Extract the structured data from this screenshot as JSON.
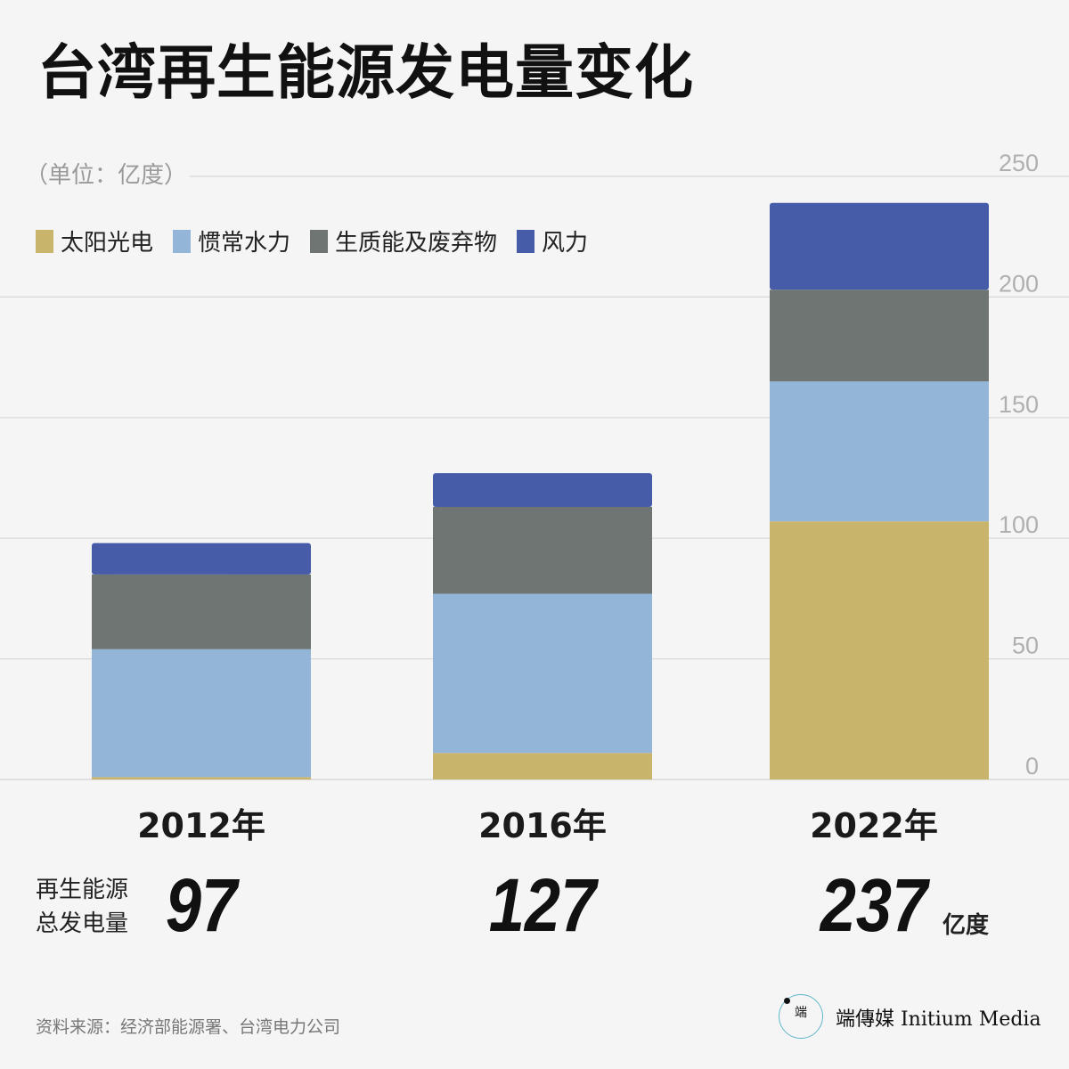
{
  "title": "台湾再生能源发电量变化",
  "unit_label": "（单位：亿度）",
  "source": "资料来源：经济部能源署、台湾电力公司",
  "brand": {
    "name": "端傳媒 Initium Media",
    "logo_glyph": "端"
  },
  "totals_label_line1": "再生能源",
  "totals_label_line2": "总发电量",
  "totals_unit": "亿度",
  "totals": [
    "97",
    "127",
    "237"
  ],
  "chart_data": {
    "type": "bar",
    "stacked": true,
    "categories": [
      "2012年",
      "2016年",
      "2022年"
    ],
    "series": [
      {
        "name": "太阳光电",
        "color": "#c9b46c",
        "values": [
          1,
          11,
          107
        ]
      },
      {
        "name": "惯常水力",
        "color": "#93b5d8",
        "values": [
          53,
          66,
          58
        ]
      },
      {
        "name": "生质能及废弃物",
        "color": "#6e7572",
        "values": [
          31,
          36,
          38
        ]
      },
      {
        "name": "风力",
        "color": "#475ca8",
        "values": [
          13,
          14,
          36
        ]
      }
    ],
    "y_ticks": [
      "0",
      "50",
      "100",
      "150",
      "200",
      "250"
    ],
    "ylim": [
      0,
      250
    ],
    "grid": true,
    "legend": "top-left",
    "y_axis_position": "right"
  }
}
